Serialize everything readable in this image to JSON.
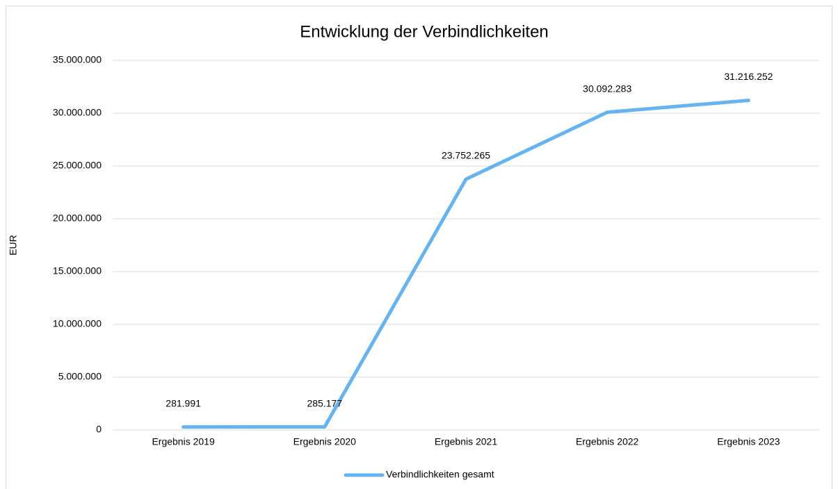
{
  "chart_data": {
    "type": "line",
    "title": "Entwicklung der Verbindlichkeiten",
    "y_label": "EUR",
    "categories": [
      "Ergebnis 2019",
      "Ergebnis 2020",
      "Ergebnis 2021",
      "Ergebnis 2022",
      "Ergebnis 2023"
    ],
    "series": [
      {
        "name": "Verbindlichkeiten gesamt",
        "color": "#65b3f0",
        "values": [
          281991,
          285177,
          23752265,
          30092283,
          31216252
        ],
        "value_labels": [
          "281.991",
          "285.177",
          "23.752.265",
          "30.092.283",
          "31.216.252"
        ]
      }
    ],
    "ylim": [
      0,
      35000000
    ],
    "yticks": [
      0,
      {
        "value": 5000000,
        "label": "5.000.000"
      },
      {
        "value": 10000000,
        "label": "10.000.000"
      },
      {
        "value": 15000000,
        "label": "15.000.000"
      },
      {
        "value": 20000000,
        "label": "20.000.000"
      },
      {
        "value": 25000000,
        "label": "25.000.000"
      },
      {
        "value": 30000000,
        "label": "30.000.000"
      },
      {
        "value": 35000000,
        "label": "35.000.000"
      }
    ],
    "grid": true,
    "legend": "bottom"
  }
}
